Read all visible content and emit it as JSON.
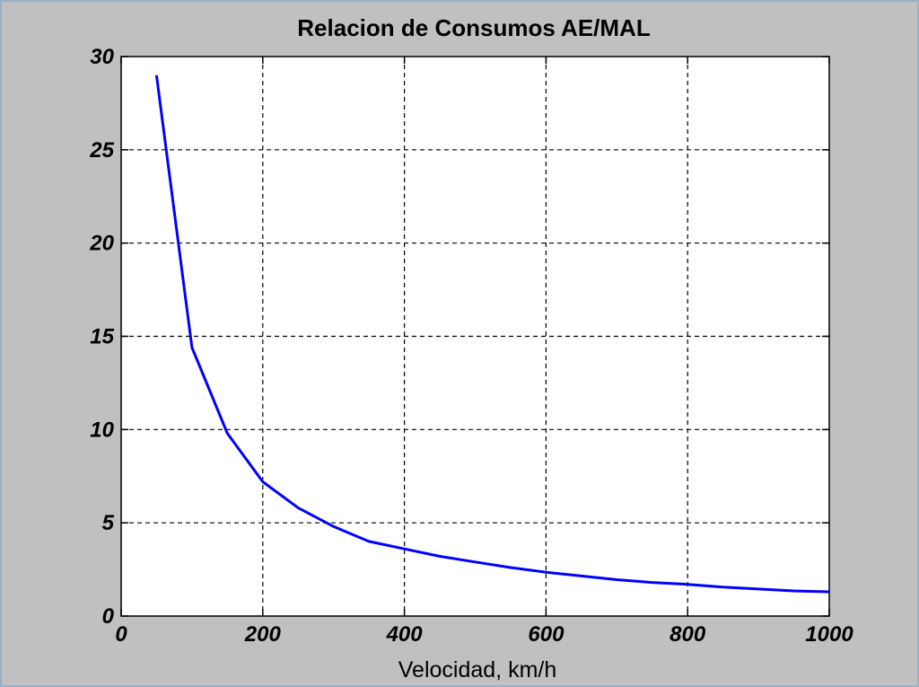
{
  "chart_data": {
    "type": "line",
    "title": "Relacion de Consumos AE/MAL",
    "xlabel": "Velocidad, km/h",
    "ylabel": "",
    "xlim": [
      0,
      1000
    ],
    "ylim": [
      0,
      30
    ],
    "xticks": [
      0,
      200,
      400,
      600,
      800,
      1000
    ],
    "xtick_labels": [
      "0",
      "200",
      "400",
      "600",
      "800",
      "1000"
    ],
    "yticks": [
      0,
      5,
      10,
      15,
      20,
      25,
      30
    ],
    "ytick_labels": [
      "0",
      "5",
      "10",
      "15",
      "20",
      "25",
      "30"
    ],
    "grid": true,
    "grid_style": "dashed",
    "line_color": "#0000ff",
    "plot_background": "#ffffff",
    "figure_background": "#c0c0c0",
    "series": [
      {
        "x": [
          50,
          100,
          150,
          200,
          250,
          300,
          350,
          400,
          450,
          500,
          550,
          600,
          650,
          700,
          750,
          800,
          850,
          900,
          950,
          1000
        ],
        "y": [
          29.0,
          14.4,
          9.8,
          7.2,
          5.8,
          4.8,
          4.0,
          3.6,
          3.2,
          2.9,
          2.6,
          2.35,
          2.15,
          1.95,
          1.8,
          1.7,
          1.55,
          1.45,
          1.35,
          1.3
        ]
      }
    ]
  }
}
